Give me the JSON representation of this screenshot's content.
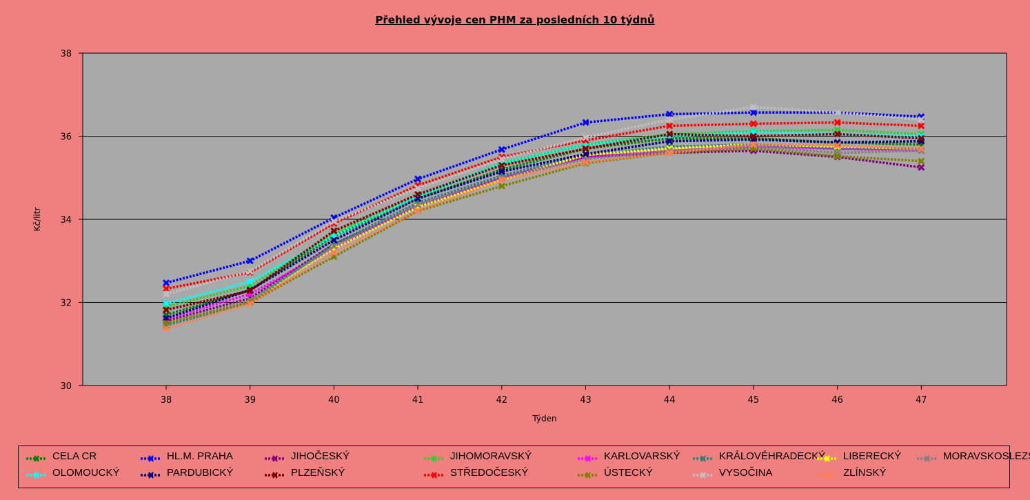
{
  "chart_data": {
    "type": "line",
    "title": "Přehled vývoje cen PHM za posledních 10 týdnů",
    "xlabel": "Týden",
    "ylabel": "Kč/litr",
    "x": [
      38,
      39,
      40,
      41,
      42,
      43,
      44,
      45,
      46,
      47
    ],
    "ylim": [
      30,
      38
    ],
    "yticks": [
      30,
      32,
      34,
      36,
      38
    ],
    "grid": true,
    "legend_position": "bottom",
    "plot_background": "#a9a9a9",
    "page_background": "#f08080",
    "series": [
      {
        "name": "CELA CR",
        "color": "#008000",
        "values": [
          31.7,
          32.3,
          33.6,
          34.5,
          35.2,
          35.7,
          35.95,
          35.95,
          35.85,
          35.8
        ]
      },
      {
        "name": "HL.M. PRAHA",
        "color": "#0000ff",
        "values": [
          32.47,
          33.0,
          34.04,
          34.97,
          35.68,
          36.33,
          36.53,
          36.57,
          36.57,
          36.47
        ]
      },
      {
        "name": "JIHOČESKÝ",
        "color": "#800080",
        "values": [
          31.55,
          32.1,
          33.4,
          34.3,
          35.0,
          35.5,
          35.6,
          35.65,
          35.5,
          35.25
        ]
      },
      {
        "name": "JIHOMORAVSKÝ",
        "color": "#32cd32",
        "values": [
          31.9,
          32.4,
          33.65,
          34.55,
          35.35,
          35.8,
          36.05,
          36.12,
          36.15,
          36.05
        ]
      },
      {
        "name": "KARLOVARSKÝ",
        "color": "#ff00ff",
        "values": [
          31.6,
          32.2,
          33.3,
          34.35,
          35.0,
          35.5,
          35.65,
          35.75,
          35.7,
          35.65
        ]
      },
      {
        "name": "KRÁLOVÉHRADECKÝ",
        "color": "#2f7f7f",
        "values": [
          31.45,
          32.0,
          33.4,
          34.4,
          35.05,
          35.55,
          35.75,
          35.8,
          35.7,
          35.7
        ]
      },
      {
        "name": "LIBERECKÝ",
        "color": "#ffff00",
        "values": [
          31.5,
          32.05,
          33.3,
          34.3,
          34.95,
          35.55,
          35.7,
          35.8,
          35.75,
          35.7
        ]
      },
      {
        "name": "MORAVSKOSLEZSKÝ",
        "color": "#808080",
        "values": [
          31.5,
          32.05,
          33.35,
          34.35,
          35.0,
          35.45,
          35.65,
          35.75,
          35.6,
          35.65
        ]
      },
      {
        "name": "OLOMOUCKÝ",
        "color": "#00ffff",
        "values": [
          31.97,
          32.5,
          33.6,
          34.55,
          35.35,
          35.8,
          36.0,
          36.1,
          36.05,
          36.0
        ]
      },
      {
        "name": "PARDUBICKÝ",
        "color": "#000080",
        "values": [
          31.62,
          32.3,
          33.5,
          34.5,
          35.15,
          35.57,
          35.88,
          35.92,
          35.85,
          35.88
        ]
      },
      {
        "name": "PLZEŇSKÝ",
        "color": "#800000",
        "values": [
          31.82,
          32.28,
          33.72,
          34.6,
          35.3,
          35.7,
          36.05,
          36.0,
          36.05,
          35.95
        ]
      },
      {
        "name": "STŘEDOČESKÝ",
        "color": "#ff0000",
        "values": [
          32.33,
          32.72,
          33.9,
          34.82,
          35.5,
          35.9,
          36.25,
          36.3,
          36.33,
          36.25
        ]
      },
      {
        "name": "ÚSTECKÝ",
        "color": "#808000",
        "values": [
          31.5,
          32.0,
          33.1,
          34.2,
          34.8,
          35.35,
          35.6,
          35.7,
          35.52,
          35.4
        ]
      },
      {
        "name": "VYSOČINA",
        "color": "#c0c0c0",
        "values": [
          32.2,
          32.75,
          33.95,
          34.75,
          35.45,
          35.97,
          36.4,
          36.7,
          36.57,
          36.4
        ]
      },
      {
        "name": "ZLÍNSKÝ",
        "color": "#ff7f50",
        "values": [
          31.37,
          31.97,
          33.2,
          34.2,
          34.95,
          35.37,
          35.6,
          35.8,
          35.78,
          35.7
        ]
      }
    ]
  }
}
